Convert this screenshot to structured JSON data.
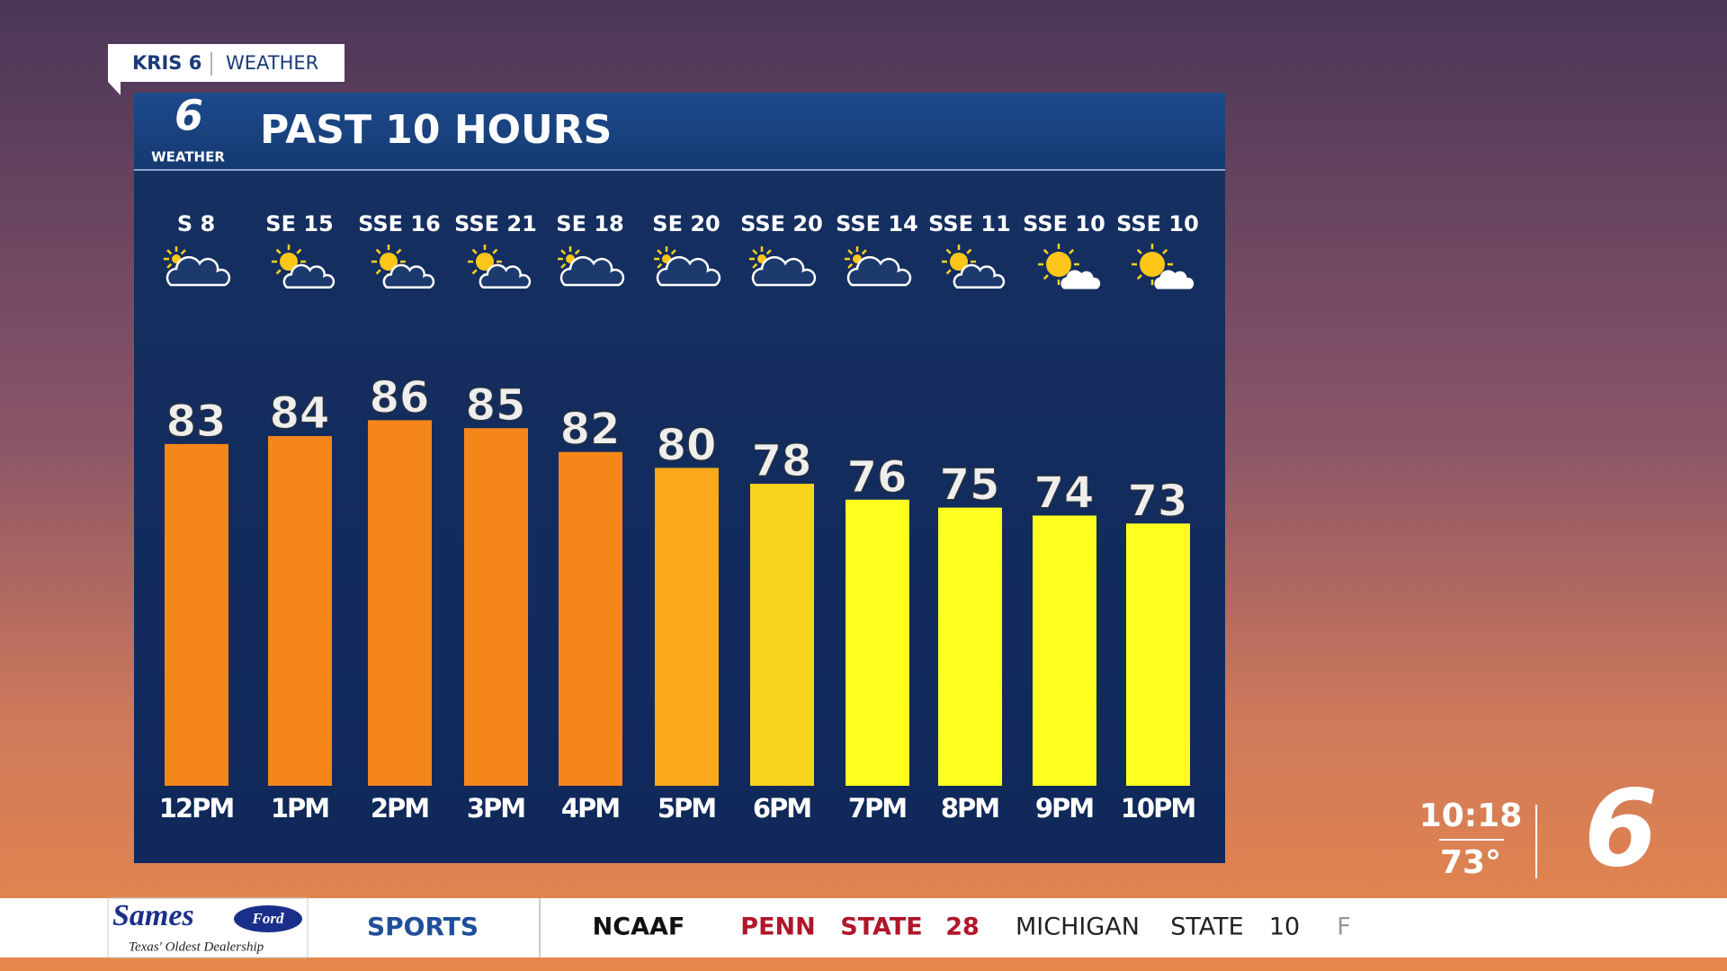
{
  "tag": {
    "station": "KRIS 6",
    "section": "WEATHER"
  },
  "logo": {
    "number": "6",
    "label": "WEATHER"
  },
  "chart_data": {
    "type": "bar",
    "title": "PAST 10 HOURS",
    "categories": [
      "12PM",
      "1PM",
      "2PM",
      "3PM",
      "4PM",
      "5PM",
      "6PM",
      "7PM",
      "8PM",
      "9PM",
      "10PM"
    ],
    "wind": [
      "S 8",
      "SE 15",
      "SSE 16",
      "SSE 21",
      "SE 18",
      "SE 20",
      "SSE 20",
      "SSE 14",
      "SSE 11",
      "SSE 10",
      "SSE 10"
    ],
    "values": [
      83,
      84,
      86,
      85,
      82,
      80,
      78,
      76,
      75,
      74,
      73
    ],
    "colors": [
      "#f5861a",
      "#f5861a",
      "#f5861a",
      "#f5861a",
      "#f5861a",
      "#f9a91b",
      "#f9d41c",
      "#ffff1e",
      "#ffff1e",
      "#ffff1e",
      "#ffff1e"
    ],
    "ylim": [
      40,
      95
    ]
  },
  "ticker": {
    "sponsor": "Sames",
    "brand": "Ford",
    "tagline": "Texas' Oldest Dealership",
    "section": "SPORTS",
    "items": [
      "NCAAF",
      "PENN",
      "STATE",
      "28",
      "MICHIGAN",
      "STATE",
      "10",
      "F"
    ]
  },
  "clock": {
    "time": "10:18",
    "temp": "73°"
  },
  "channel": "6"
}
